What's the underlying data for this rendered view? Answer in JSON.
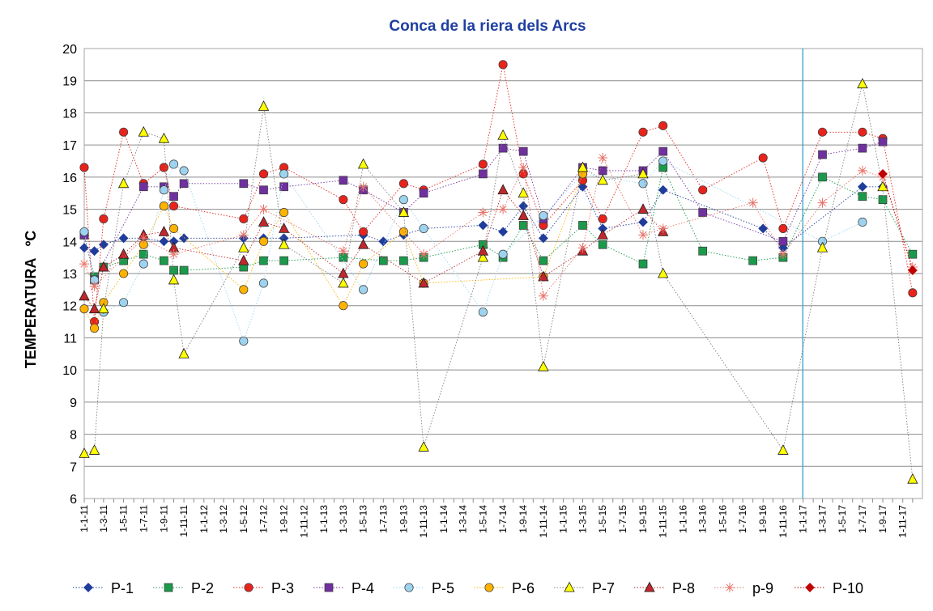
{
  "chart_data": {
    "type": "line",
    "title": "Conca de la riera dels Arcs",
    "ylabel": "TEMPERATURA   ºC",
    "xlabel": "",
    "ylim": [
      6,
      20
    ],
    "yticks": [
      6,
      7,
      8,
      9,
      10,
      11,
      12,
      13,
      14,
      15,
      16,
      17,
      18,
      19,
      20
    ],
    "xticks": [
      "1-1-11",
      "1-3-11",
      "1-5-11",
      "1-7-11",
      "1-9-11",
      "1-11-11",
      "1-1-12",
      "1-3-12",
      "1-5-12",
      "1-7-12",
      "1-9-12",
      "1-11-12",
      "1-1-13",
      "1-3-13",
      "1-5-13",
      "1-7-13",
      "1-9-13",
      "1-11-13",
      "1-1-14",
      "1-3-14",
      "1-5-14",
      "1-7-14",
      "1-9-14",
      "1-11-14",
      "1-1-15",
      "1-3-15",
      "1-5-15",
      "1-7-15",
      "1-9-15",
      "1-11-15",
      "1-1-16",
      "1-3-16",
      "1-5-16",
      "1-7-16",
      "1-9-16",
      "1-11-16",
      "1-1-17",
      "1-3-17",
      "1-5-17",
      "1-7-17",
      "1-9-17",
      "1-11-17"
    ],
    "xrange": [
      "2011-01-01",
      "2017-12-31"
    ],
    "vline": "2016-12-31",
    "grid": "horizontal",
    "legend_position": "bottom",
    "series": [
      {
        "name": "P-1",
        "marker": "diamond",
        "color": "#1f3c9a",
        "points": [
          [
            "2011-01-01",
            13.8
          ],
          [
            "2011-02-01",
            13.7
          ],
          [
            "2011-03-01",
            13.9
          ],
          [
            "2011-05-01",
            14.1
          ],
          [
            "2011-07-01",
            14.1
          ],
          [
            "2011-09-01",
            14.0
          ],
          [
            "2011-10-01",
            14.0
          ],
          [
            "2011-11-01",
            14.1
          ],
          [
            "2012-05-01",
            14.1
          ],
          [
            "2012-07-01",
            14.1
          ],
          [
            "2012-09-01",
            14.1
          ],
          [
            "2013-05-01",
            14.2
          ],
          [
            "2013-07-01",
            14.0
          ],
          [
            "2013-09-01",
            14.2
          ],
          [
            "2013-11-01",
            14.4
          ],
          [
            "2014-05-01",
            14.5
          ],
          [
            "2014-07-01",
            14.3
          ],
          [
            "2014-09-01",
            15.1
          ],
          [
            "2014-11-01",
            14.1
          ],
          [
            "2015-03-01",
            15.7
          ],
          [
            "2015-05-01",
            14.4
          ],
          [
            "2015-09-01",
            14.6
          ],
          [
            "2015-11-01",
            15.6
          ],
          [
            "2016-09-01",
            14.4
          ],
          [
            "2016-11-01",
            13.8
          ],
          [
            "2017-07-01",
            15.7
          ],
          [
            "2017-09-01",
            15.7
          ]
        ]
      },
      {
        "name": "P-2",
        "marker": "square",
        "color": "#1a9a4a",
        "points": [
          [
            "2011-01-01",
            14.2
          ],
          [
            "2011-02-01",
            12.9
          ],
          [
            "2011-03-01",
            13.2
          ],
          [
            "2011-05-01",
            13.4
          ],
          [
            "2011-07-01",
            13.6
          ],
          [
            "2011-09-01",
            13.4
          ],
          [
            "2011-10-01",
            13.1
          ],
          [
            "2011-11-01",
            13.1
          ],
          [
            "2012-05-01",
            13.2
          ],
          [
            "2012-07-01",
            13.4
          ],
          [
            "2012-09-01",
            13.4
          ],
          [
            "2013-03-01",
            13.5
          ],
          [
            "2013-07-01",
            13.4
          ],
          [
            "2013-09-01",
            13.4
          ],
          [
            "2013-11-01",
            13.5
          ],
          [
            "2014-05-01",
            13.9
          ],
          [
            "2014-07-01",
            13.5
          ],
          [
            "2014-09-01",
            14.5
          ],
          [
            "2014-11-01",
            13.4
          ],
          [
            "2015-03-01",
            14.5
          ],
          [
            "2015-05-01",
            13.9
          ],
          [
            "2015-09-01",
            13.3
          ],
          [
            "2015-11-01",
            16.3
          ],
          [
            "2016-03-01",
            13.7
          ],
          [
            "2016-08-01",
            13.4
          ],
          [
            "2016-11-01",
            13.5
          ],
          [
            "2017-03-01",
            16.0
          ],
          [
            "2017-07-01",
            15.4
          ],
          [
            "2017-09-01",
            15.3
          ],
          [
            "2017-12-01",
            13.6
          ]
        ]
      },
      {
        "name": "P-3",
        "marker": "circle",
        "color": "#e8231c",
        "points": [
          [
            "2011-01-01",
            16.3
          ],
          [
            "2011-02-01",
            11.5
          ],
          [
            "2011-03-01",
            14.7
          ],
          [
            "2011-05-01",
            17.4
          ],
          [
            "2011-07-01",
            15.8
          ],
          [
            "2011-09-01",
            16.3
          ],
          [
            "2011-10-01",
            15.1
          ],
          [
            "2012-05-01",
            14.7
          ],
          [
            "2012-07-01",
            16.1
          ],
          [
            "2012-09-01",
            16.3
          ],
          [
            "2013-03-01",
            15.3
          ],
          [
            "2013-05-01",
            14.3
          ],
          [
            "2013-09-01",
            15.8
          ],
          [
            "2013-11-01",
            15.6
          ],
          [
            "2014-05-01",
            16.4
          ],
          [
            "2014-07-01",
            19.5
          ],
          [
            "2014-09-01",
            16.1
          ],
          [
            "2014-11-01",
            14.5
          ],
          [
            "2015-03-01",
            15.9
          ],
          [
            "2015-05-01",
            14.7
          ],
          [
            "2015-09-01",
            17.4
          ],
          [
            "2015-11-01",
            17.6
          ],
          [
            "2016-03-01",
            15.6
          ],
          [
            "2016-09-01",
            16.6
          ],
          [
            "2016-11-01",
            14.4
          ],
          [
            "2017-03-01",
            17.4
          ],
          [
            "2017-07-01",
            17.4
          ],
          [
            "2017-09-01",
            17.2
          ],
          [
            "2017-12-01",
            12.4
          ]
        ]
      },
      {
        "name": "P-4",
        "marker": "square",
        "color": "#7030a0",
        "points": [
          [
            "2011-01-01",
            14.2
          ],
          [
            "2011-02-01",
            12.8
          ],
          [
            "2011-07-01",
            15.7
          ],
          [
            "2011-09-01",
            15.7
          ],
          [
            "2011-10-01",
            15.4
          ],
          [
            "2011-11-01",
            15.8
          ],
          [
            "2012-05-01",
            15.8
          ],
          [
            "2012-07-01",
            15.6
          ],
          [
            "2012-09-01",
            15.7
          ],
          [
            "2013-03-01",
            15.9
          ],
          [
            "2013-05-01",
            15.6
          ],
          [
            "2013-09-01",
            14.9
          ],
          [
            "2013-11-01",
            15.5
          ],
          [
            "2014-05-01",
            16.1
          ],
          [
            "2014-07-01",
            16.9
          ],
          [
            "2014-09-01",
            16.8
          ],
          [
            "2014-11-01",
            14.7
          ],
          [
            "2015-03-01",
            16.3
          ],
          [
            "2015-05-01",
            16.2
          ],
          [
            "2015-09-01",
            16.2
          ],
          [
            "2015-11-01",
            16.8
          ],
          [
            "2016-03-01",
            14.9
          ],
          [
            "2016-11-01",
            14.0
          ],
          [
            "2017-03-01",
            16.7
          ],
          [
            "2017-07-01",
            16.9
          ],
          [
            "2017-09-01",
            17.1
          ]
        ]
      },
      {
        "name": "P-5",
        "marker": "circle",
        "color": "#9dd3ef",
        "points": [
          [
            "2011-01-01",
            14.3
          ],
          [
            "2011-02-01",
            12.8
          ],
          [
            "2011-03-01",
            11.8
          ],
          [
            "2011-05-01",
            12.1
          ],
          [
            "2011-07-01",
            13.3
          ],
          [
            "2011-09-01",
            15.6
          ],
          [
            "2011-10-01",
            16.4
          ],
          [
            "2011-11-01",
            16.2
          ],
          [
            "2012-05-01",
            10.9
          ],
          [
            "2012-07-01",
            12.7
          ],
          [
            "2012-09-01",
            16.1
          ],
          [
            "2013-05-01",
            12.5
          ],
          [
            "2013-09-01",
            15.3
          ],
          [
            "2013-11-01",
            14.4
          ],
          [
            "2014-05-01",
            11.8
          ],
          [
            "2014-07-01",
            13.6
          ],
          [
            "2014-11-01",
            14.8
          ],
          [
            "2015-03-01",
            16.1
          ],
          [
            "2015-09-01",
            15.8
          ],
          [
            "2015-11-01",
            16.5
          ],
          [
            "2017-03-01",
            14.0
          ],
          [
            "2017-07-01",
            14.6
          ]
        ]
      },
      {
        "name": "P-6",
        "marker": "circle",
        "color": "#ffb300",
        "points": [
          [
            "2011-01-01",
            11.9
          ],
          [
            "2011-02-01",
            11.3
          ],
          [
            "2011-03-01",
            12.1
          ],
          [
            "2011-05-01",
            13.0
          ],
          [
            "2011-07-01",
            13.9
          ],
          [
            "2011-09-01",
            15.1
          ],
          [
            "2011-10-01",
            14.4
          ],
          [
            "2012-05-01",
            12.5
          ],
          [
            "2012-07-01",
            14.0
          ],
          [
            "2012-09-01",
            14.9
          ],
          [
            "2013-03-01",
            12.0
          ],
          [
            "2013-05-01",
            13.3
          ],
          [
            "2013-09-01",
            14.3
          ],
          [
            "2013-11-01",
            12.7
          ],
          [
            "2014-11-01",
            12.9
          ],
          [
            "2015-03-01",
            16.1
          ]
        ]
      },
      {
        "name": "P-7",
        "marker": "triangle",
        "color": "#ffff00",
        "points": [
          [
            "2011-01-01",
            7.4
          ],
          [
            "2011-02-01",
            7.5
          ],
          [
            "2011-03-01",
            11.9
          ],
          [
            "2011-05-01",
            15.8
          ],
          [
            "2011-07-01",
            17.4
          ],
          [
            "2011-09-01",
            17.2
          ],
          [
            "2011-10-01",
            12.8
          ],
          [
            "2011-11-01",
            10.5
          ],
          [
            "2012-05-01",
            13.8
          ],
          [
            "2012-07-01",
            18.2
          ],
          [
            "2012-09-01",
            13.9
          ],
          [
            "2013-03-01",
            12.7
          ],
          [
            "2013-05-01",
            16.4
          ],
          [
            "2013-09-01",
            14.9
          ],
          [
            "2013-11-01",
            7.6
          ],
          [
            "2014-05-01",
            13.5
          ],
          [
            "2014-07-01",
            17.3
          ],
          [
            "2014-09-01",
            15.5
          ],
          [
            "2014-11-01",
            10.1
          ],
          [
            "2015-03-01",
            16.3
          ],
          [
            "2015-05-01",
            15.9
          ],
          [
            "2015-09-01",
            16.1
          ],
          [
            "2015-11-01",
            13.0
          ],
          [
            "2016-11-01",
            7.5
          ],
          [
            "2017-03-01",
            13.8
          ],
          [
            "2017-07-01",
            18.9
          ],
          [
            "2017-09-01",
            15.7
          ],
          [
            "2017-12-01",
            6.6
          ]
        ]
      },
      {
        "name": "P-8",
        "marker": "triangle",
        "color": "#c0282d",
        "points": [
          [
            "2011-01-01",
            12.3
          ],
          [
            "2011-02-01",
            11.9
          ],
          [
            "2011-03-01",
            13.2
          ],
          [
            "2011-05-01",
            13.6
          ],
          [
            "2011-07-01",
            14.2
          ],
          [
            "2011-09-01",
            14.3
          ],
          [
            "2011-10-01",
            13.8
          ],
          [
            "2012-05-01",
            13.4
          ],
          [
            "2012-07-01",
            14.6
          ],
          [
            "2012-09-01",
            14.4
          ],
          [
            "2013-03-01",
            13.0
          ],
          [
            "2013-05-01",
            13.9
          ],
          [
            "2013-11-01",
            12.7
          ],
          [
            "2014-05-01",
            13.7
          ],
          [
            "2014-07-01",
            15.6
          ],
          [
            "2014-09-01",
            14.8
          ],
          [
            "2014-11-01",
            12.9
          ],
          [
            "2015-03-01",
            13.7
          ],
          [
            "2015-05-01",
            14.2
          ],
          [
            "2015-09-01",
            15.0
          ],
          [
            "2015-11-01",
            14.3
          ]
        ]
      },
      {
        "name": "p-9",
        "marker": "star",
        "color": "#e8746a",
        "points": [
          [
            "2011-01-01",
            13.3
          ],
          [
            "2011-02-01",
            12.6
          ],
          [
            "2011-07-01",
            14.1
          ],
          [
            "2011-10-01",
            13.6
          ],
          [
            "2012-05-01",
            14.2
          ],
          [
            "2012-07-01",
            15.0
          ],
          [
            "2013-03-01",
            13.7
          ],
          [
            "2013-05-01",
            15.7
          ],
          [
            "2013-11-01",
            13.6
          ],
          [
            "2014-05-01",
            14.9
          ],
          [
            "2014-07-01",
            15.0
          ],
          [
            "2014-09-01",
            16.3
          ],
          [
            "2014-11-01",
            12.3
          ],
          [
            "2015-03-01",
            13.8
          ],
          [
            "2015-05-01",
            16.6
          ],
          [
            "2015-09-01",
            14.2
          ],
          [
            "2015-11-01",
            14.4
          ],
          [
            "2016-08-01",
            15.2
          ],
          [
            "2016-11-01",
            13.6
          ],
          [
            "2017-03-01",
            15.2
          ],
          [
            "2017-07-01",
            16.2
          ],
          [
            "2017-09-01",
            16.0
          ],
          [
            "2017-12-01",
            13.2
          ]
        ]
      },
      {
        "name": "P-10",
        "marker": "diamond",
        "color": "#c00000",
        "points": [
          [
            "2017-09-01",
            16.1
          ],
          [
            "2017-12-01",
            13.1
          ]
        ]
      }
    ]
  }
}
